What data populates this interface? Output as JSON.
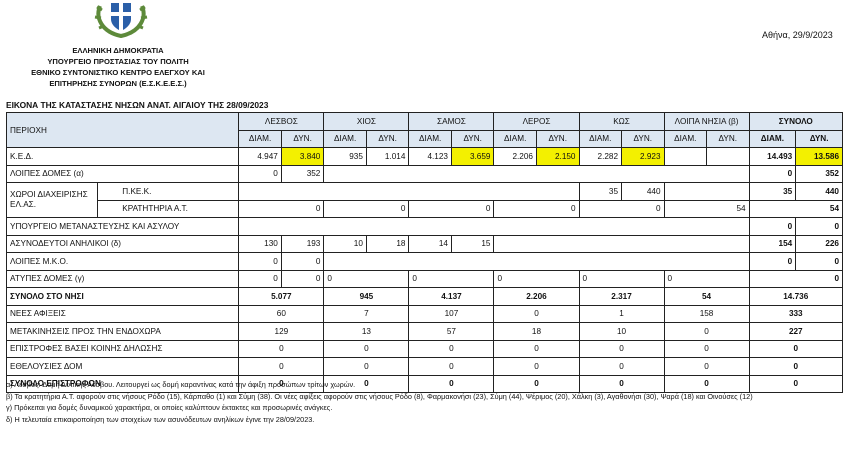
{
  "header": {
    "lines": [
      "ΕΛΛΗΝΙΚΗ ΔΗΜΟΚΡΑΤΙΑ",
      "ΥΠΟΥΡΓΕΙΟ ΠΡΟΣΤΑΣΙΑΣ ΤΟΥ ΠΟΛΙΤΗ",
      "ΕΘΝΙΚΟ ΣΥΝΤΟΝΙΣΤΙΚΟ ΚΕΝΤΡΟ ΕΛΕΓΧΟΥ ΚΑΙ",
      "ΕΠΙΤΗΡΗΣΗΣ ΣΥΝΟΡΩΝ (Ε.Σ.Κ.Ε.Ε.Σ.)"
    ],
    "date": "Αθήνα,    29/9/2023",
    "subtitle": "ΕΙΚΟΝΑ ΤΗΣ ΚΑΤΑΣΤΑΣΗΣ ΝΗΣΩΝ ΑΝΑΤ. ΑΙΓΑΙΟΥ ΤΗΣ 28/09/2023"
  },
  "table": {
    "region_label": "ΠΕΡΙΟΧΗ",
    "islands": [
      "ΛΕΣΒΟΣ",
      "ΧΙΟΣ",
      "ΣΑΜΟΣ",
      "ΛΕΡΟΣ",
      "ΚΩΣ",
      "ΛΟΙΠΑ ΝΗΣΙΑ (β)"
    ],
    "total_label": "ΣΥΝΟΛΟ",
    "diam": "ΔΙΑΜ.",
    "dyn": "ΔΥΝ.",
    "kyd": {
      "label": "Κ.Ε.Δ.",
      "values": [
        "4.947",
        "3.840",
        "935",
        "1.014",
        "4.123",
        "3.659",
        "2.206",
        "2.150",
        "2.282",
        "2.923",
        "",
        ""
      ],
      "total_diam": "14.493",
      "total_dyn": "13.586"
    },
    "loipes_domes": {
      "label": "ΛΟΙΠΕΣ ΔΟΜΕΣ (α)",
      "lesvos_diam": "0",
      "lesvos_dyn": "352",
      "total_diam": "0",
      "total_dyn": "352"
    },
    "xoroi_label": "ΧΩΡΟΙ ΔΙΑΧΕΙΡΙΣΗΣ ΕΛ.ΑΣ.",
    "pkek": {
      "label": "Π.ΚΕ.Κ.",
      "kos_diam": "35",
      "kos_dyn": "440",
      "total_diam": "35",
      "total_dyn": "440"
    },
    "kratitiria": {
      "label": "ΚΡΑΤΗΤΗΡΙΑ Α.Τ.",
      "lesvos": "0",
      "chios": "0",
      "samos": "0",
      "leros": "0",
      "kos": "0",
      "loipa": "54",
      "total": "54"
    },
    "ypourgeio": {
      "label": "ΥΠΟΥΡΓΕΙΟ ΜΕΤΑΝΑΣΤΕΥΣΗΣ ΚΑΙ ΑΣΥΛΟΥ",
      "total_diam": "0",
      "total_dyn": "0"
    },
    "asynodeytoi": {
      "label": "ΑΣΥΝΟΔΕΥΤΟΙ ΑΝΗΛΙΚΟΙ (δ)",
      "values": [
        "130",
        "193",
        "10",
        "18",
        "14",
        "15"
      ],
      "total_diam": "154",
      "total_dyn": "226"
    },
    "loipes_mko": {
      "label": "ΛΟΙΠΕΣ Μ.Κ.Ο.",
      "lesvos_diam": "0",
      "lesvos_dyn": "0",
      "total_diam": "0",
      "total_dyn": "0"
    },
    "atypes": {
      "label": "ΑΤΥΠΕΣ ΔΟΜΕΣ (γ)",
      "lesvos_diam": "0",
      "lesvos_dyn": "0",
      "chios": "0",
      "samos": "0",
      "leros": "0",
      "kos": "0",
      "loipa": "0",
      "total": "0"
    },
    "synolo_nisi": {
      "label": "ΣΥΝΟΛΟ ΣΤΟ ΝΗΣΙ",
      "values": [
        "5.077",
        "945",
        "4.137",
        "2.206",
        "2.317",
        "54"
      ],
      "total": "14.736"
    },
    "simple_rows": [
      {
        "label": "ΝΕΕΣ ΑΦΙΞΕΙΣ",
        "values": [
          "60",
          "7",
          "107",
          "0",
          "1",
          "158"
        ],
        "total": "333"
      },
      {
        "label": "ΜΕΤΑΚΙΝΗΣΕΙΣ ΠΡΟΣ ΤΗΝ ΕΝΔΟΧΩΡΑ",
        "values": [
          "129",
          "13",
          "57",
          "18",
          "10",
          "0"
        ],
        "total": "227"
      },
      {
        "label": "ΕΠΙΣΤΡΟΦΕΣ ΒΑΣΕΙ ΚΟΙΝΗΣ ΔΗΛΩΣΗΣ",
        "values": [
          "0",
          "0",
          "0",
          "0",
          "0",
          "0"
        ],
        "total": "0"
      },
      {
        "label": "ΕΘΕΛΟΥΣΙΕΣ ΔΟΜ",
        "values": [
          "0",
          "0",
          "0",
          "0",
          "0",
          "0"
        ],
        "total": "0"
      }
    ],
    "synolo_epistrofon": {
      "label": "ΣΥΝΟΛΟ ΕΠΙΣΤΡΟΦΩΝ",
      "values": [
        "0",
        "0",
        "0",
        "0",
        "0",
        "0"
      ],
      "total": "0"
    }
  },
  "notes": [
    "α) Λέσβος: Δομή Δυτικής Λέσβου. Λειτουργεί ως δομή  καραντίνας κατά την άφιξη προσώπων τρίτων χωρών.",
    "β) Τα κρατητήρια Α.Τ. αφορούν στις νήσους Ρόδο (15), Κάρπαθο (1) και Σύμη (38).  Οι νέες αφίξεις αφορούν στις νήσους Ρόδο (8), Φαρμακονήσι (23), Σύμη (44), Ψέριμος (20), Χάλκη (3), Αγαθονήσι (30), Ψαρά (18)  και Οινούσες (12)",
    "γ) Πρόκειται για δομές δυναμικού χαρακτήρα, οι οποίες καλύπτουν έκτακτες και προσωρινές ανάγκες.",
    "δ) Η τελευταία επικαιροποίηση των στοιχείων των ασυνόδευτων ανηλίκων έγινε την 28/09/2023."
  ]
}
